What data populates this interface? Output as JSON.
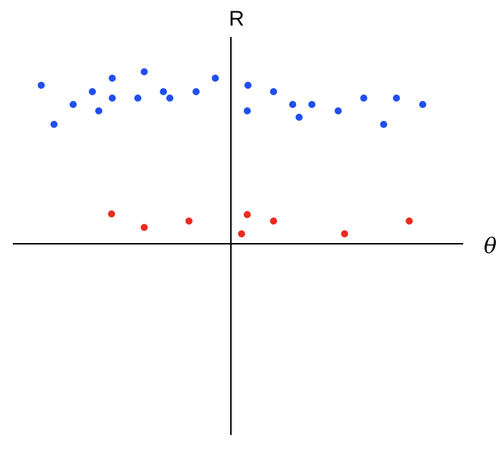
{
  "chart_data": {
    "type": "scatter",
    "x_label": "θ",
    "y_label": "R",
    "xlim": [
      -307,
      327
    ],
    "ylim": [
      -269,
      291
    ],
    "series": [
      {
        "color": "#1f4ff0",
        "x": [
          -267,
          -249,
          -222,
          -195,
          -186,
          -167,
          -167,
          -131,
          -122,
          -95,
          -86,
          -49,
          -22,
          24,
          23,
          60,
          87,
          96,
          114,
          151,
          187,
          215,
          233,
          270
        ],
        "values": [
          223,
          168,
          196,
          214,
          187,
          233,
          205,
          205,
          242,
          214,
          205,
          214,
          233,
          223,
          187,
          214,
          196,
          178,
          196,
          187,
          205,
          168,
          205,
          196
        ]
      },
      {
        "color": "#ee2a1e",
        "x": [
          -168,
          -122,
          -59,
          15,
          23,
          60,
          160,
          251
        ],
        "values": [
          42,
          23,
          32,
          14,
          41,
          32,
          14,
          32
        ]
      }
    ]
  }
}
